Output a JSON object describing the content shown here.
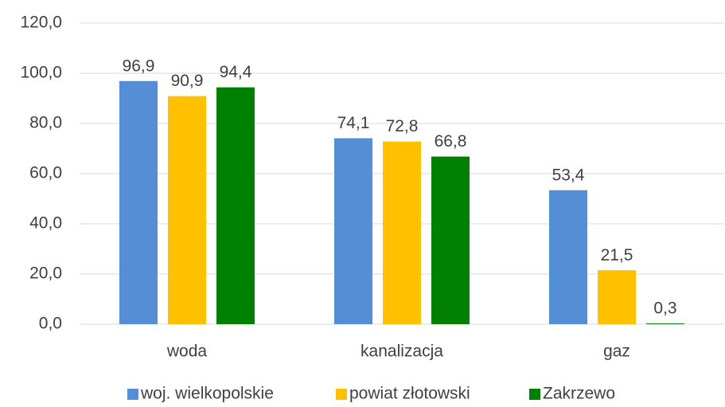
{
  "chart_data": {
    "type": "bar",
    "categories": [
      "woda",
      "kanalizacja",
      "gaz"
    ],
    "series": [
      {
        "name": "woj. wielkopolskie",
        "color": "#558ed5",
        "values": [
          96.9,
          74.1,
          53.4
        ],
        "value_labels": [
          "96,9",
          "74,1",
          "53,4"
        ]
      },
      {
        "name": "powiat złotowski",
        "color": "#ffc000",
        "values": [
          90.9,
          72.8,
          21.5
        ],
        "value_labels": [
          "90,9",
          "72,8",
          "21,5"
        ]
      },
      {
        "name": "Zakrzewo",
        "color": "#008000",
        "values": [
          94.4,
          66.8,
          0.3
        ],
        "value_labels": [
          "94,4",
          "66,8",
          "0,3"
        ]
      }
    ],
    "ylim": [
      0,
      120
    ],
    "yticks": [
      {
        "value": 0,
        "label": "0,0"
      },
      {
        "value": 20,
        "label": "20,0"
      },
      {
        "value": 40,
        "label": "40,0"
      },
      {
        "value": 60,
        "label": "60,0"
      },
      {
        "value": 80,
        "label": "80,0"
      },
      {
        "value": 100,
        "label": "100,0"
      },
      {
        "value": 120,
        "label": "120,0"
      }
    ],
    "grid": true,
    "legend": "bottom"
  }
}
